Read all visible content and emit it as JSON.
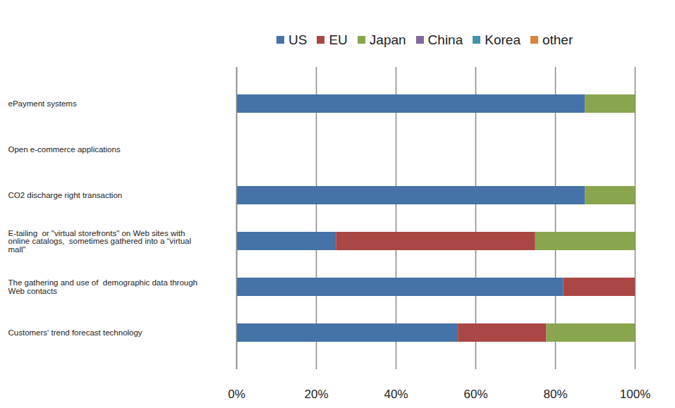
{
  "chart_data": {
    "type": "bar",
    "orientation": "horizontal",
    "stacked": true,
    "grid": true,
    "legend": "top",
    "categories": [
      "ePayment systems",
      "Open e-commerce applications",
      "CO2 discharge right transaction",
      "E-tailing  or \"virtual storefronts\" on Web sites with online catalogs,  sometimes gathered into a “virtual mall”",
      "The gathering and use of  demographic data through Web contacts",
      "Customers' trend forecast technology"
    ],
    "series": [
      {
        "name": "US",
        "color": "#4572a7",
        "values": [
          87.5,
          0,
          87.5,
          25,
          82,
          55.6
        ]
      },
      {
        "name": "EU",
        "color": "#aa4643",
        "values": [
          0,
          0,
          0,
          50,
          18,
          22.2
        ]
      },
      {
        "name": "Japan",
        "color": "#89a54e",
        "values": [
          12.5,
          0,
          12.5,
          25,
          0,
          22.2
        ]
      },
      {
        "name": "China",
        "color": "#80699b",
        "values": [
          0,
          0,
          0,
          0,
          0,
          0
        ]
      },
      {
        "name": "Korea",
        "color": "#3d96ae",
        "values": [
          0,
          0,
          0,
          0,
          0,
          0
        ]
      },
      {
        "name": "other",
        "color": "#db843d",
        "values": [
          0,
          0,
          0,
          0,
          0,
          0
        ]
      }
    ],
    "xlim": [
      0,
      100
    ],
    "xticks": [
      {
        "value": 0,
        "label": "0%"
      },
      {
        "value": 20,
        "label": "20%"
      },
      {
        "value": 40,
        "label": "40%"
      },
      {
        "value": 60,
        "label": "60%"
      },
      {
        "value": 80,
        "label": "80%"
      },
      {
        "value": 100,
        "label": "100%"
      }
    ]
  }
}
